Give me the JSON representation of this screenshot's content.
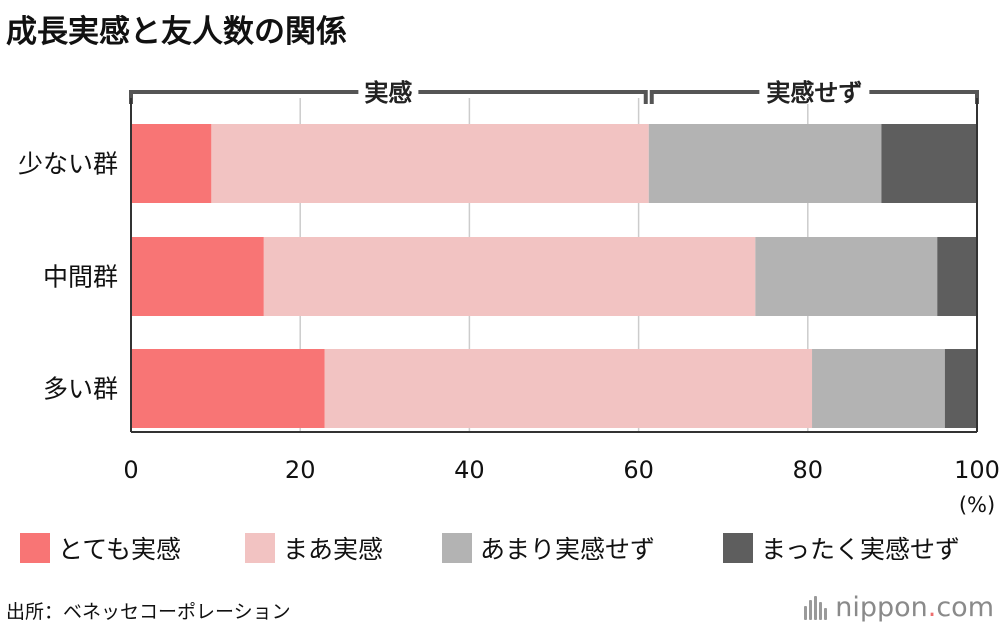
{
  "chart_data": {
    "type": "bar",
    "orientation": "horizontal",
    "stacked": true,
    "title": "成長実感と友人数の関係",
    "categories": [
      "少ない群",
      "中間群",
      "多い群"
    ],
    "series": [
      {
        "name": "とても実感",
        "color": "#f87575",
        "values": [
          9.5,
          15.7,
          22.9
        ]
      },
      {
        "name": "まあ実感",
        "color": "#f2c3c2",
        "values": [
          51.7,
          58.1,
          57.6
        ]
      },
      {
        "name": "あまり実感せず",
        "color": "#b3b3b3",
        "values": [
          27.5,
          21.5,
          15.7
        ]
      },
      {
        "name": "まったく実感せず",
        "color": "#5e5e5e",
        "values": [
          11.3,
          4.7,
          3.8
        ]
      }
    ],
    "group_labels": [
      {
        "label": "実感",
        "start": 0,
        "end": 61.2
      },
      {
        "label": "実感せず",
        "start": 61.2,
        "end": 100
      }
    ],
    "xlim": [
      0,
      100
    ],
    "x_ticks": [
      "0",
      "20",
      "40",
      "60",
      "80",
      "100"
    ],
    "x_unit": "(%)",
    "grid": true,
    "legend_position": "bottom"
  },
  "footer": {
    "source": "出所：ベネッセコーポレーション",
    "brand_name": "nippon",
    "brand_dot": ".",
    "brand_tld": "com"
  }
}
